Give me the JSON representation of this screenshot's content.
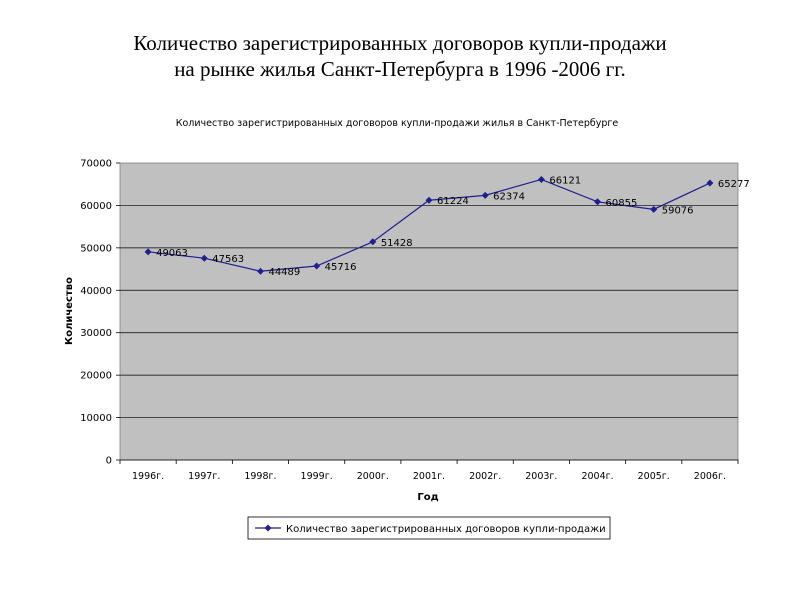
{
  "slide": {
    "title_line1": "Количество зарегистрированных договоров купли-продажи",
    "title_line2": "на рынке жилья Санкт-Петербурга в 1996 -2006 гг."
  },
  "chart_data": {
    "type": "line",
    "title": "Количество зарегистрированных договоров купли-продажи жилья в Санкт-Петербурге",
    "xlabel": "Год",
    "ylabel": "Количество",
    "categories": [
      "1996г.",
      "1997г.",
      "1998г.",
      "1999г.",
      "2000г.",
      "2001г.",
      "2002г.",
      "2003г.",
      "2004г.",
      "2005г.",
      "2006г."
    ],
    "series": [
      {
        "name": "Количество зарегистрированных договоров купли-продажи",
        "values": [
          49063,
          47563,
          44489,
          45716,
          51428,
          61224,
          62374,
          66121,
          60855,
          59076,
          65277
        ],
        "color": "#1f1f8f"
      }
    ],
    "ylim": [
      0,
      70000
    ],
    "yticks": [
      0,
      10000,
      20000,
      30000,
      40000,
      50000,
      60000,
      70000
    ],
    "grid": true,
    "legend_position": "bottom",
    "plot_background": "#c0c0c0"
  }
}
